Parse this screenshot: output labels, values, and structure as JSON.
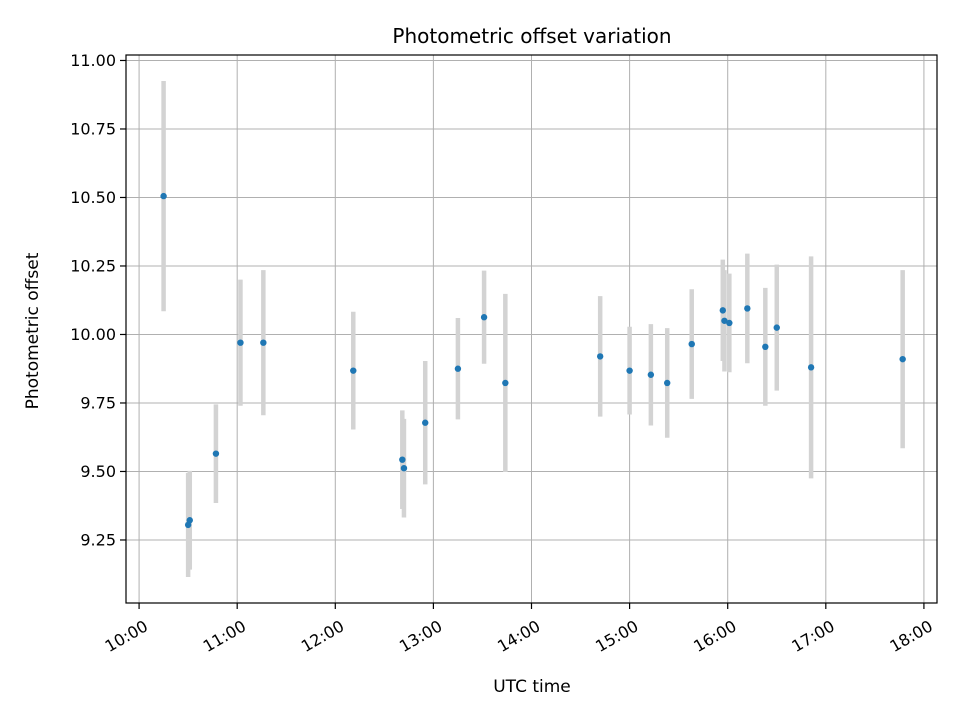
{
  "chart_data": {
    "type": "scatter",
    "title": "Photometric offset variation",
    "xlabel": "UTC time",
    "ylabel": "Photometric offset",
    "xlim": [
      "09:52",
      "18:08"
    ],
    "ylim": [
      9.02,
      11.02
    ],
    "x_ticks": [
      "10:00",
      "11:00",
      "12:00",
      "13:00",
      "14:00",
      "15:00",
      "16:00",
      "17:00",
      "18:00"
    ],
    "y_ticks": [
      9.25,
      9.5,
      9.75,
      10.0,
      10.25,
      10.5,
      10.75,
      11.0
    ],
    "y_tick_labels": [
      "9.25",
      "9.50",
      "9.75",
      "10.00",
      "10.25",
      "10.50",
      "10.75",
      "11.00"
    ],
    "grid": true,
    "colors": {
      "point": "#1f77b4",
      "errorbar": "#d3d3d3",
      "grid": "#b0b0b0"
    },
    "points": [
      {
        "x": "10:15",
        "y": 10.505,
        "err": 0.42
      },
      {
        "x": "10:30",
        "y": 9.305,
        "err": 0.19
      },
      {
        "x": "10:31",
        "y": 9.322,
        "err": 0.18
      },
      {
        "x": "10:47",
        "y": 9.565,
        "err": 0.18
      },
      {
        "x": "11:02",
        "y": 9.97,
        "err": 0.23
      },
      {
        "x": "11:16",
        "y": 9.97,
        "err": 0.265
      },
      {
        "x": "12:11",
        "y": 9.868,
        "err": 0.215
      },
      {
        "x": "12:41",
        "y": 9.543,
        "err": 0.18
      },
      {
        "x": "12:42",
        "y": 9.512,
        "err": 0.18
      },
      {
        "x": "12:55",
        "y": 9.678,
        "err": 0.225
      },
      {
        "x": "13:15",
        "y": 9.875,
        "err": 0.185
      },
      {
        "x": "13:31",
        "y": 10.063,
        "err": 0.17
      },
      {
        "x": "13:44",
        "y": 9.823,
        "err": 0.325
      },
      {
        "x": "14:42",
        "y": 9.92,
        "err": 0.22
      },
      {
        "x": "15:00",
        "y": 9.868,
        "err": 0.16
      },
      {
        "x": "15:13",
        "y": 9.853,
        "err": 0.185
      },
      {
        "x": "15:23",
        "y": 9.823,
        "err": 0.2
      },
      {
        "x": "15:38",
        "y": 9.965,
        "err": 0.2
      },
      {
        "x": "15:57",
        "y": 10.088,
        "err": 0.185
      },
      {
        "x": "15:58",
        "y": 10.05,
        "err": 0.185
      },
      {
        "x": "16:01",
        "y": 10.042,
        "err": 0.18
      },
      {
        "x": "16:12",
        "y": 10.095,
        "err": 0.2
      },
      {
        "x": "16:23",
        "y": 9.955,
        "err": 0.215
      },
      {
        "x": "16:30",
        "y": 10.025,
        "err": 0.23
      },
      {
        "x": "16:51",
        "y": 9.88,
        "err": 0.405
      },
      {
        "x": "17:47",
        "y": 9.91,
        "err": 0.325
      }
    ]
  }
}
